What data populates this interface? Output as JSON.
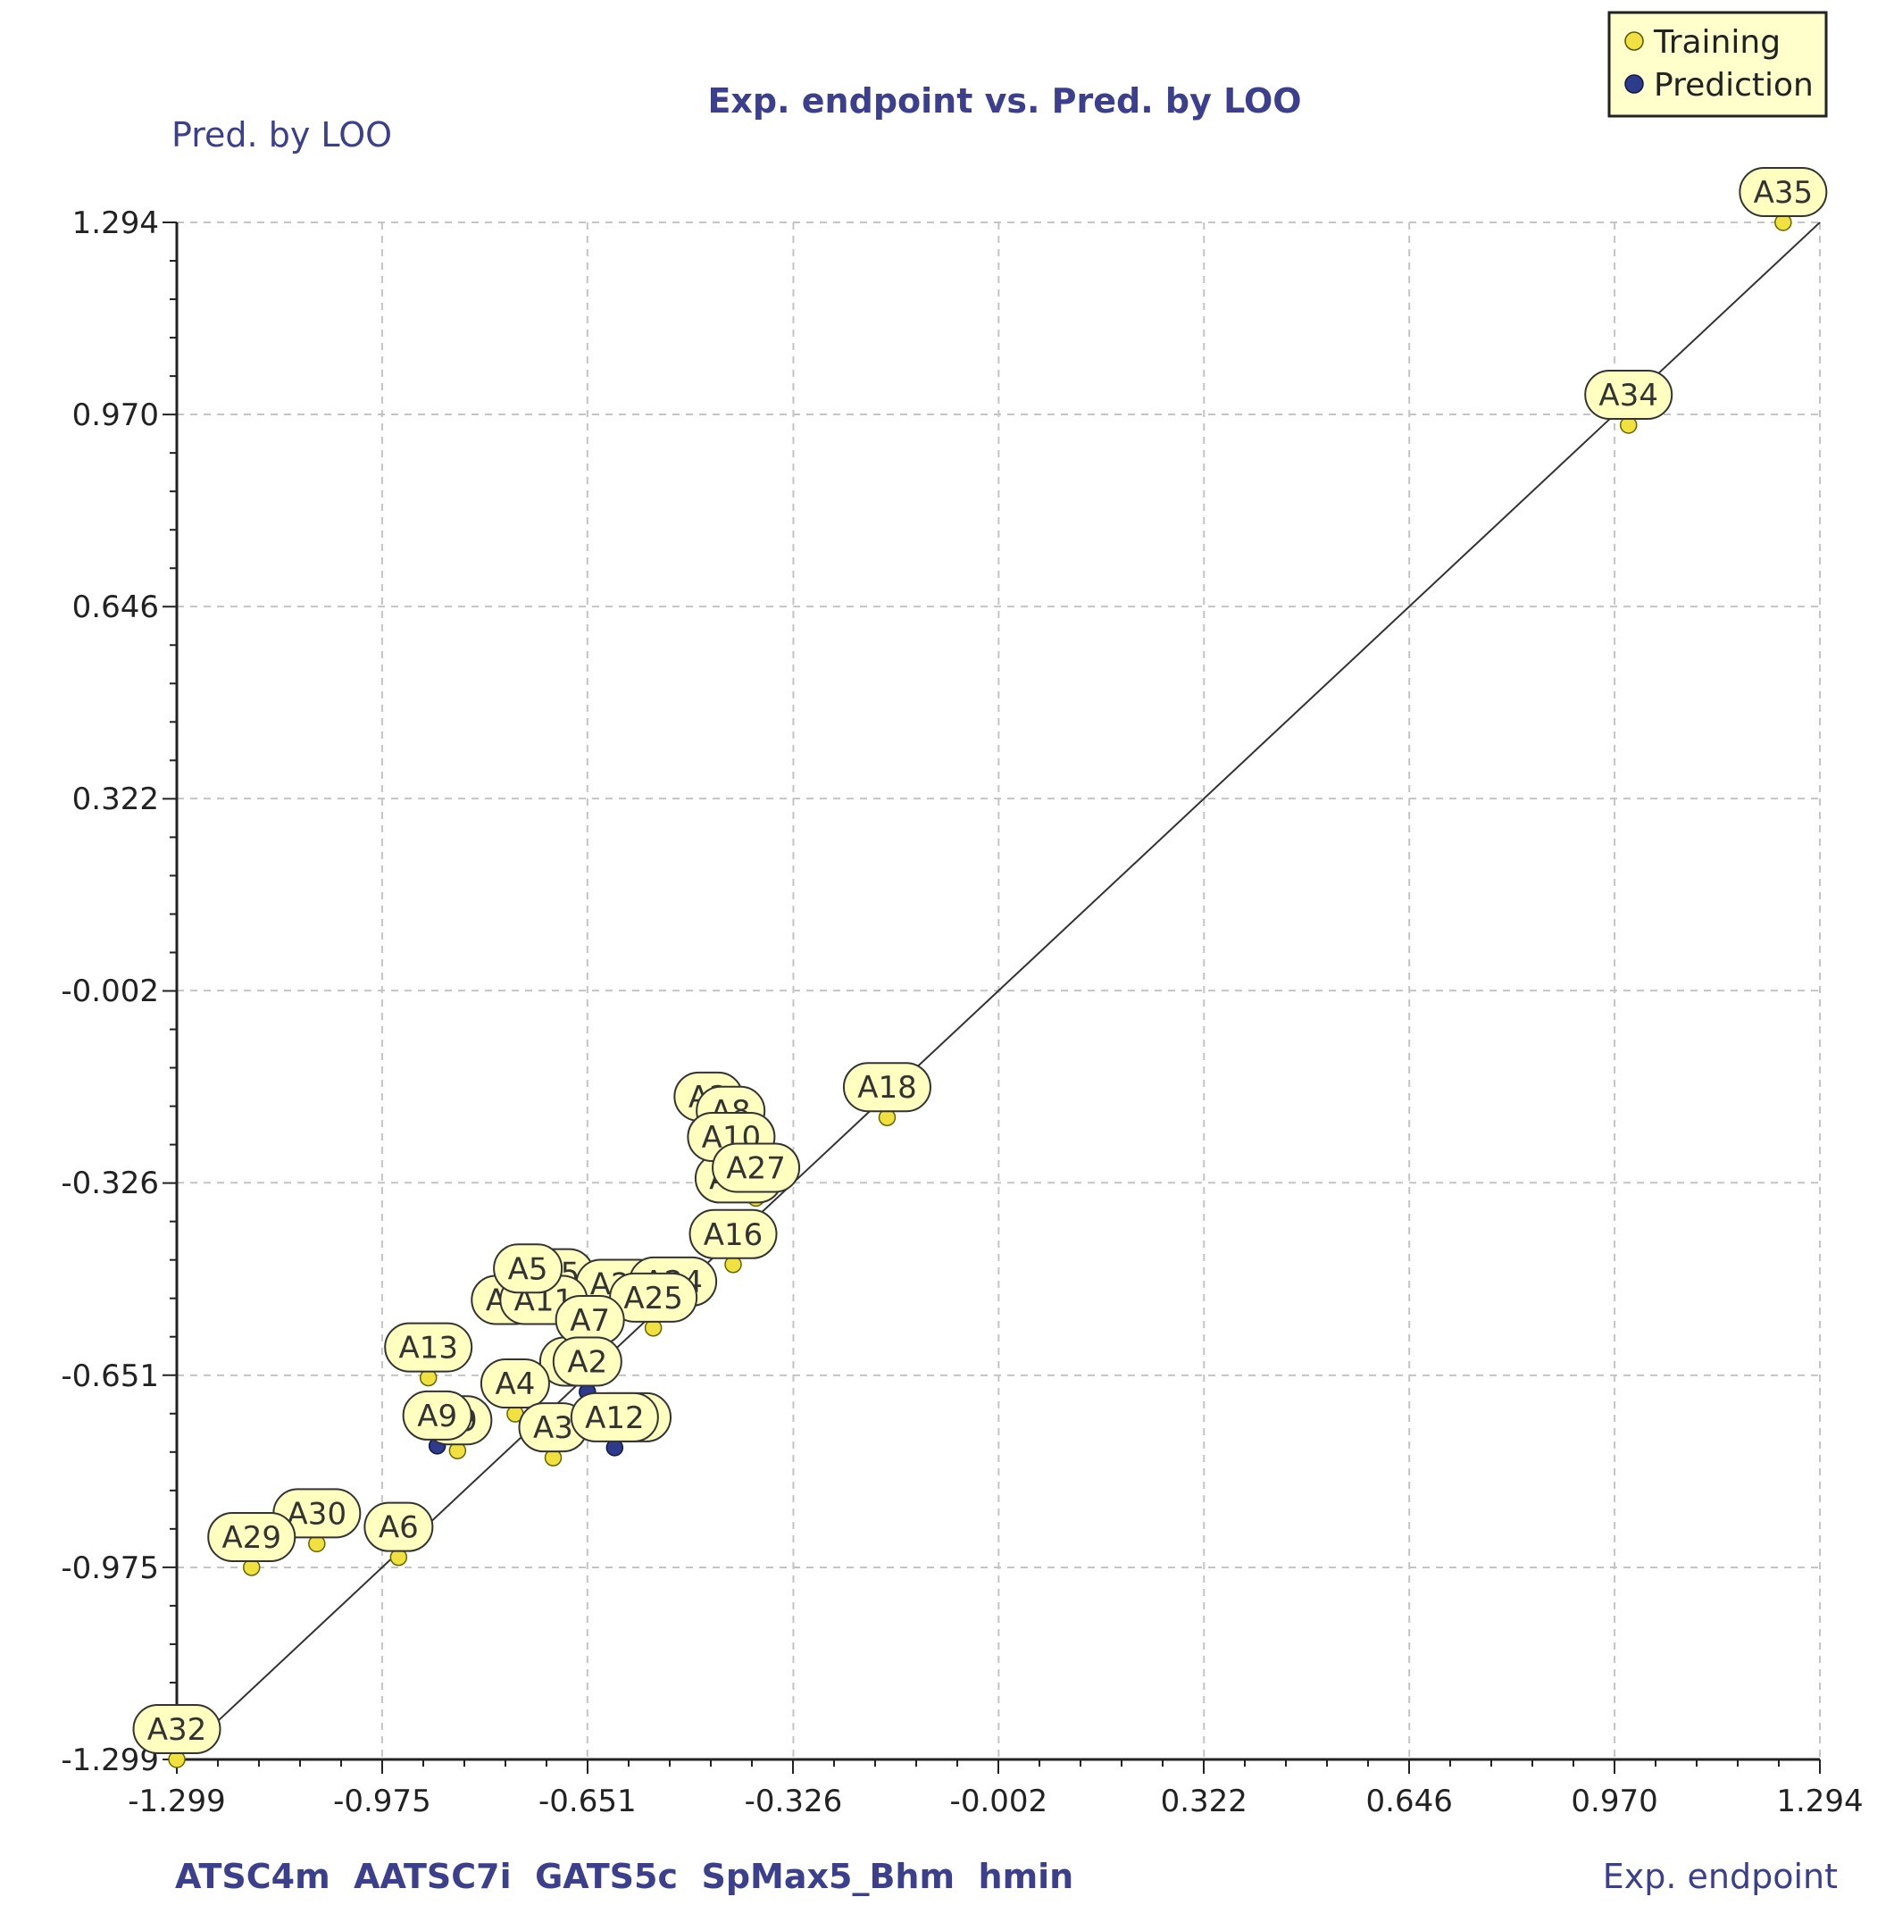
{
  "chart_data": {
    "type": "scatter",
    "title": "Exp. endpoint vs. Pred. by LOO",
    "xlabel": "Exp. endpoint",
    "ylabel": "Pred. by LOO",
    "descriptors": "ATSC4m  AATSC7i  GATS5c  SpMax5_Bhm  hmin",
    "xlim": [
      -1.299,
      1.294
    ],
    "ylim": [
      -1.299,
      1.294
    ],
    "xticks": [
      -1.299,
      -0.975,
      -0.651,
      -0.326,
      -0.002,
      0.322,
      0.646,
      0.97,
      1.294
    ],
    "yticks": [
      -1.299,
      -0.975,
      -0.651,
      -0.326,
      -0.002,
      0.322,
      0.646,
      0.97,
      1.294
    ],
    "xtick_labels": [
      "-1.299",
      "-0.975",
      "-0.651",
      "-0.326",
      "-0.002",
      "0.322",
      "0.646",
      "0.970",
      "1.294"
    ],
    "ytick_labels": [
      "-1.299",
      "-0.975",
      "-0.651",
      "-0.326",
      "-0.002",
      "0.322",
      "0.646",
      "0.970",
      "1.294"
    ],
    "grid": true,
    "legend_position": "top-right",
    "legend": [
      {
        "name": "Training",
        "color": "#f0e040"
      },
      {
        "name": "Prediction",
        "color": "#2e3a8c"
      }
    ],
    "fit_line": {
      "from": [
        -1.26,
        -1.26
      ],
      "to": [
        1.294,
        1.294
      ]
    },
    "series": [
      {
        "name": "Training",
        "color": "#f0e040",
        "points": [
          {
            "label": "A35",
            "x": 1.236,
            "y": 1.294
          },
          {
            "label": "A34",
            "x": 0.992,
            "y": 0.952
          },
          {
            "label": "A18",
            "x": -0.178,
            "y": -0.216
          },
          {
            "label": "A8",
            "x": -0.425,
            "y": -0.256
          },
          {
            "label": "A10",
            "x": -0.424,
            "y": -0.3
          },
          {
            "label": "A27",
            "x": -0.385,
            "y": -0.352
          },
          {
            "label": "A16",
            "x": -0.421,
            "y": -0.464
          },
          {
            "label": "A24",
            "x": -0.516,
            "y": -0.544
          },
          {
            "label": "A25",
            "x": -0.547,
            "y": -0.571
          },
          {
            "label": "A5",
            "x": -0.745,
            "y": -0.522
          },
          {
            "label": "A7",
            "x": -0.647,
            "y": -0.609
          },
          {
            "label": "A13",
            "x": -0.902,
            "y": -0.655
          },
          {
            "label": "A4",
            "x": -0.765,
            "y": -0.716
          },
          {
            "label": "A9",
            "x": -0.856,
            "y": -0.778
          },
          {
            "label": "A3",
            "x": -0.705,
            "y": -0.79
          },
          {
            "label": "A30",
            "x": -1.078,
            "y": -0.935
          },
          {
            "label": "A29",
            "x": -1.181,
            "y": -0.975
          },
          {
            "label": "A6",
            "x": -0.949,
            "y": -0.958
          },
          {
            "label": "A32",
            "x": -1.299,
            "y": -1.299
          }
        ]
      },
      {
        "name": "Prediction",
        "color": "#2e3a8c",
        "points": [
          {
            "label": "A2",
            "x": -0.651,
            "y": -0.679
          },
          {
            "label": "A12",
            "x": -0.608,
            "y": -0.773
          },
          {
            "label": "A9",
            "x": -0.888,
            "y": -0.77
          }
        ]
      }
    ],
    "extra_labels": [
      {
        "label": "A2",
        "x": -0.46,
        "y": -0.232
      },
      {
        "label": "A23",
        "x": -0.412,
        "y": -0.37
      },
      {
        "label": "A15",
        "x": -0.71,
        "y": -0.53
      },
      {
        "label": "A26",
        "x": -0.6,
        "y": -0.548
      },
      {
        "label": "A1",
        "x": -0.78,
        "y": -0.575
      },
      {
        "label": "A11",
        "x": -0.72,
        "y": -0.575
      },
      {
        "label": "A2",
        "x": -0.672,
        "y": -0.679
      },
      {
        "label": "A12",
        "x": -0.588,
        "y": -0.773
      }
    ]
  }
}
